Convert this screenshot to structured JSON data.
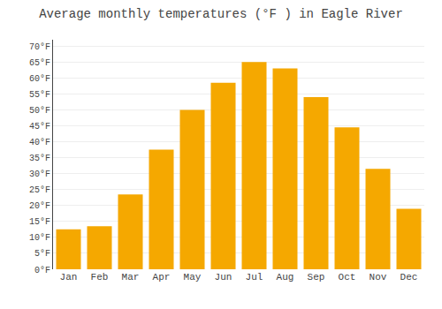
{
  "chart_data": {
    "type": "bar",
    "title": "Average monthly temperatures (°F ) in Eagle River",
    "categories": [
      "Jan",
      "Feb",
      "Mar",
      "Apr",
      "May",
      "Jun",
      "Jul",
      "Aug",
      "Sep",
      "Oct",
      "Nov",
      "Dec"
    ],
    "values": [
      12.5,
      13.5,
      23.5,
      37.5,
      50.0,
      58.5,
      65.0,
      63.0,
      54.0,
      44.5,
      31.5,
      19.0
    ],
    "color": "#F5A800",
    "ylim": [
      0,
      72
    ],
    "yticks": [
      {
        "value": 0,
        "label": "0°F"
      },
      {
        "value": 5,
        "label": "5°F"
      },
      {
        "value": 10,
        "label": "10°F"
      },
      {
        "value": 15,
        "label": "15°F"
      },
      {
        "value": 20,
        "label": "20°F"
      },
      {
        "value": 25,
        "label": "25°F"
      },
      {
        "value": 30,
        "label": "30°F"
      },
      {
        "value": 35,
        "label": "35°F"
      },
      {
        "value": 40,
        "label": "40°F"
      },
      {
        "value": 45,
        "label": "45°F"
      },
      {
        "value": 50,
        "label": "50°F"
      },
      {
        "value": 55,
        "label": "55°F"
      },
      {
        "value": 60,
        "label": "60°F"
      },
      {
        "value": 65,
        "label": "65°F"
      },
      {
        "value": 70,
        "label": "70°F"
      }
    ],
    "grid": true
  }
}
